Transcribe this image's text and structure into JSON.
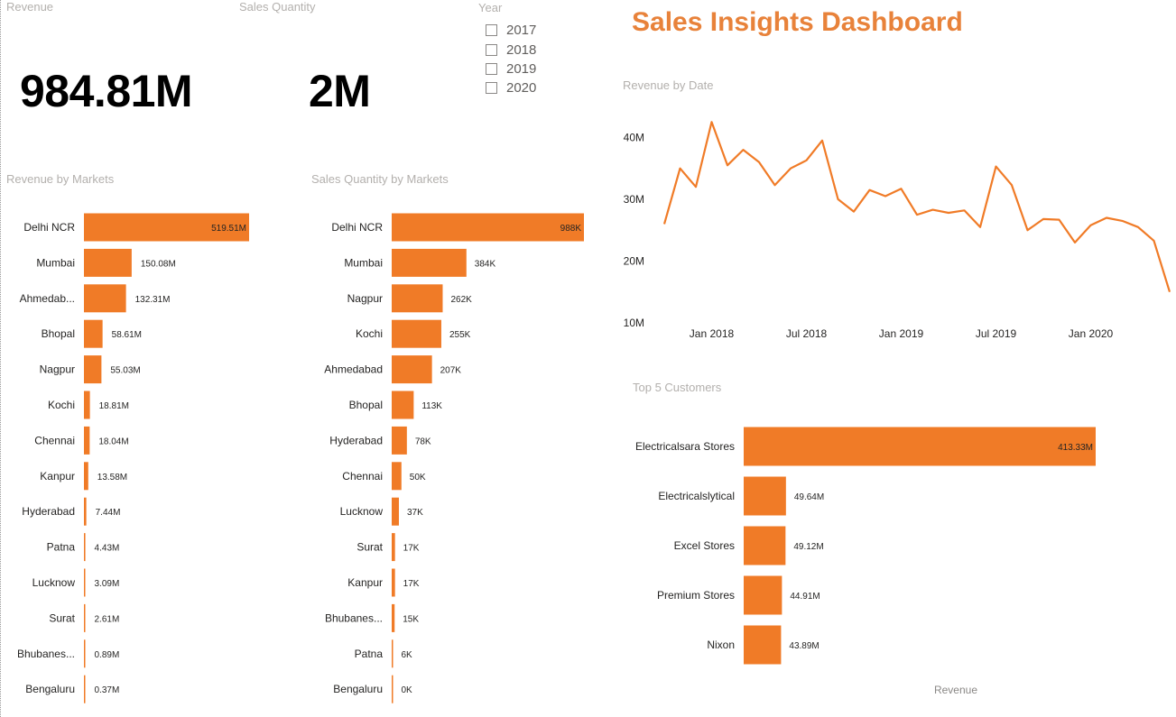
{
  "dashboard": {
    "title": "Sales Insights Dashboard"
  },
  "colors": {
    "accent": "#f07b27",
    "title": "#e8823a",
    "muted": "#b3b0ad"
  },
  "kpis": {
    "revenue": {
      "label": "Revenue",
      "value": "984.81M"
    },
    "sales_quantity": {
      "label": "Sales Quantity",
      "value": "2M"
    }
  },
  "year_slicer": {
    "label": "Year",
    "options": [
      "2017",
      "2018",
      "2019",
      "2020"
    ]
  },
  "chart_data": [
    {
      "id": "revenue_by_markets",
      "type": "bar",
      "orientation": "horizontal",
      "title": "Revenue by Markets",
      "categories": [
        "Delhi NCR",
        "Mumbai",
        "Ahmedab...",
        "Bhopal",
        "Nagpur",
        "Kochi",
        "Chennai",
        "Kanpur",
        "Hyderabad",
        "Patna",
        "Lucknow",
        "Surat",
        "Bhubanes...",
        "Bengaluru"
      ],
      "values": [
        519.51,
        150.08,
        132.31,
        58.61,
        55.03,
        18.81,
        18.04,
        13.58,
        7.44,
        4.43,
        3.09,
        2.61,
        0.89,
        0.37
      ],
      "labels": [
        "519.51M",
        "150.08M",
        "132.31M",
        "58.61M",
        "55.03M",
        "18.81M",
        "18.04M",
        "13.58M",
        "7.44M",
        "4.43M",
        "3.09M",
        "2.61M",
        "0.89M",
        "0.37M"
      ],
      "xlim": [
        0,
        519.51
      ]
    },
    {
      "id": "sales_quantity_by_markets",
      "type": "bar",
      "orientation": "horizontal",
      "title": "Sales Quantity by Markets",
      "categories": [
        "Delhi NCR",
        "Mumbai",
        "Nagpur",
        "Kochi",
        "Ahmedabad",
        "Bhopal",
        "Hyderabad",
        "Chennai",
        "Lucknow",
        "Surat",
        "Kanpur",
        "Bhubanes...",
        "Patna",
        "Bengaluru"
      ],
      "values": [
        988,
        384,
        262,
        255,
        207,
        113,
        78,
        50,
        37,
        17,
        17,
        15,
        6,
        0.4
      ],
      "labels": [
        "988K",
        "384K",
        "262K",
        "255K",
        "207K",
        "113K",
        "78K",
        "50K",
        "37K",
        "17K",
        "17K",
        "15K",
        "6K",
        "0K"
      ],
      "xlim": [
        0,
        988
      ]
    },
    {
      "id": "revenue_by_date",
      "type": "line",
      "title": "Revenue by Date",
      "xlabel": "",
      "ylabel": "",
      "x": [
        "2017-10",
        "2017-11",
        "2017-12",
        "2018-01",
        "2018-02",
        "2018-03",
        "2018-04",
        "2018-05",
        "2018-06",
        "2018-07",
        "2018-08",
        "2018-09",
        "2018-10",
        "2018-11",
        "2018-12",
        "2019-01",
        "2019-02",
        "2019-03",
        "2019-04",
        "2019-05",
        "2019-06",
        "2019-07",
        "2019-08",
        "2019-09",
        "2019-10",
        "2019-11",
        "2019-12",
        "2020-01",
        "2020-02",
        "2020-03",
        "2020-04",
        "2020-05",
        "2020-06"
      ],
      "values": [
        26,
        35,
        32,
        42.5,
        35.5,
        38,
        36,
        32.3,
        35,
        36.3,
        39.5,
        30,
        28,
        31.5,
        30.5,
        31.7,
        27.5,
        28.3,
        27.8,
        28.2,
        25.5,
        35.3,
        32.3,
        25,
        26.8,
        26.7,
        23,
        25.8,
        27,
        26.5,
        25.5,
        23.3,
        15
      ],
      "value_unit": "M",
      "ylim": [
        10,
        44
      ],
      "y_ticks": [
        "10M",
        "20M",
        "30M",
        "40M"
      ],
      "y_tick_values": [
        10,
        20,
        30,
        40
      ],
      "x_ticks": [
        "Jan 2018",
        "Jul 2018",
        "Jan 2019",
        "Jul 2019",
        "Jan 2020"
      ],
      "x_tick_index": [
        3,
        9,
        15,
        21,
        27
      ]
    },
    {
      "id": "top_5_customers",
      "type": "bar",
      "orientation": "horizontal",
      "title": "Top 5 Customers",
      "xlabel": "Revenue",
      "categories": [
        "Electricalsara Stores",
        "Electricalslytical",
        "Excel Stores",
        "Premium Stores",
        "Nixon"
      ],
      "values": [
        413.33,
        49.64,
        49.12,
        44.91,
        43.89
      ],
      "labels": [
        "413.33M",
        "49.64M",
        "49.12M",
        "44.91M",
        "43.89M"
      ],
      "xlim": [
        0,
        413.33
      ]
    }
  ]
}
